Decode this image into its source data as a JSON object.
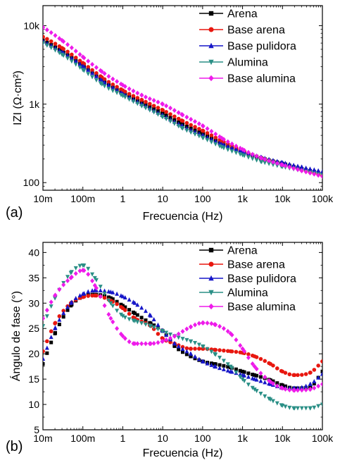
{
  "chart_data": [
    {
      "type": "scatter",
      "panel_label": "(a)",
      "xlabel": "Frecuencia (Hz)",
      "ylabel": "IZI (Ω·cm²)",
      "x_scale": "log",
      "y_scale": "log",
      "xlim": [
        0.01,
        100000
      ],
      "ylim": [
        80,
        18000
      ],
      "x_ticks": [
        {
          "value": 0.01,
          "label": "10m"
        },
        {
          "value": 0.1,
          "label": "100m"
        },
        {
          "value": 1,
          "label": "1"
        },
        {
          "value": 10,
          "label": "10"
        },
        {
          "value": 100,
          "label": "100"
        },
        {
          "value": 1000,
          "label": "1k"
        },
        {
          "value": 10000,
          "label": "10k"
        },
        {
          "value": 100000,
          "label": "100k"
        }
      ],
      "y_ticks": [
        {
          "value": 100,
          "label": "100"
        },
        {
          "value": 1000,
          "label": "1k"
        },
        {
          "value": 10000,
          "label": "10k"
        }
      ],
      "legend_position": "top-right",
      "series": [
        {
          "name": "Arena",
          "color": "#000000",
          "marker": "square",
          "x": [
            0.01,
            0.03,
            0.1,
            0.3,
            1,
            3,
            10,
            30,
            100,
            300,
            1000,
            3000,
            10000,
            30000,
            100000
          ],
          "y": [
            6500,
            4700,
            3100,
            2050,
            1400,
            1050,
            760,
            560,
            420,
            320,
            250,
            205,
            175,
            150,
            130
          ]
        },
        {
          "name": "Base arena",
          "color": "#e8170f",
          "marker": "circle",
          "x": [
            0.01,
            0.03,
            0.1,
            0.3,
            1,
            3,
            10,
            30,
            100,
            300,
            1000,
            3000,
            10000,
            30000,
            100000
          ],
          "y": [
            7200,
            5200,
            3350,
            2200,
            1500,
            1130,
            840,
            620,
            460,
            340,
            255,
            205,
            170,
            145,
            122
          ]
        },
        {
          "name": "Base pulidora",
          "color": "#1616c8",
          "marker": "triangle-up",
          "x": [
            0.01,
            0.03,
            0.1,
            0.3,
            1,
            3,
            10,
            30,
            100,
            300,
            1000,
            3000,
            10000,
            30000,
            100000
          ],
          "y": [
            6300,
            4600,
            3050,
            2000,
            1360,
            1000,
            720,
            530,
            400,
            310,
            250,
            210,
            180,
            158,
            138
          ]
        },
        {
          "name": "Alumina",
          "color": "#2a8f86",
          "marker": "triangle-down",
          "x": [
            0.01,
            0.03,
            0.1,
            0.3,
            1,
            3,
            10,
            30,
            100,
            300,
            1000,
            3000,
            10000,
            30000,
            100000
          ],
          "y": [
            6000,
            4300,
            2750,
            1800,
            1280,
            950,
            690,
            500,
            375,
            285,
            225,
            185,
            160,
            142,
            125
          ]
        },
        {
          "name": "Base alumina",
          "color": "#ee1bea",
          "marker": "diamond",
          "x": [
            0.01,
            0.03,
            0.1,
            0.3,
            1,
            3,
            10,
            30,
            100,
            300,
            1000,
            3000,
            10000,
            30000,
            100000
          ],
          "y": [
            9500,
            6500,
            4000,
            2600,
            1750,
            1300,
            1000,
            740,
            530,
            370,
            265,
            205,
            168,
            142,
            120
          ]
        }
      ]
    },
    {
      "type": "scatter",
      "panel_label": "(b)",
      "xlabel": "Frecuencia (Hz)",
      "ylabel": "Ángulo de fase (°)",
      "x_scale": "log",
      "y_scale": "linear",
      "xlim": [
        0.01,
        100000
      ],
      "ylim": [
        5,
        42
      ],
      "x_ticks": [
        {
          "value": 0.01,
          "label": "10m"
        },
        {
          "value": 0.1,
          "label": "100m"
        },
        {
          "value": 1,
          "label": "1"
        },
        {
          "value": 10,
          "label": "10"
        },
        {
          "value": 100,
          "label": "100"
        },
        {
          "value": 1000,
          "label": "1k"
        },
        {
          "value": 10000,
          "label": "10k"
        },
        {
          "value": 100000,
          "label": "100k"
        }
      ],
      "y_ticks": [
        {
          "value": 5,
          "label": "5"
        },
        {
          "value": 10,
          "label": "10"
        },
        {
          "value": 15,
          "label": "15"
        },
        {
          "value": 20,
          "label": "20"
        },
        {
          "value": 25,
          "label": "25"
        },
        {
          "value": 30,
          "label": "30"
        },
        {
          "value": 35,
          "label": "35"
        },
        {
          "value": 40,
          "label": "40"
        }
      ],
      "legend_position": "top-right",
      "series": [
        {
          "name": "Arena",
          "color": "#000000",
          "marker": "square",
          "x": [
            0.01,
            0.02,
            0.05,
            0.1,
            0.2,
            0.5,
            1,
            2,
            5,
            10,
            20,
            50,
            100,
            200,
            500,
            1000,
            2000,
            5000,
            10000,
            20000,
            50000,
            100000
          ],
          "y": [
            18,
            24,
            29.5,
            31.3,
            31.7,
            31,
            29.5,
            28,
            26,
            24.5,
            21.5,
            19.5,
            18.5,
            18,
            17.3,
            16.5,
            15.8,
            14.8,
            13.8,
            13.2,
            13.5,
            16.5
          ]
        },
        {
          "name": "Base arena",
          "color": "#e8170f",
          "marker": "circle",
          "x": [
            0.01,
            0.02,
            0.05,
            0.1,
            0.2,
            0.5,
            1,
            2,
            5,
            10,
            20,
            50,
            100,
            200,
            500,
            1000,
            2000,
            5000,
            10000,
            20000,
            50000,
            100000
          ],
          "y": [
            20.5,
            26,
            30,
            31.2,
            31.5,
            30.5,
            29,
            27,
            25.5,
            23,
            22,
            21,
            21,
            20.8,
            20.5,
            20.2,
            19.5,
            18,
            16.5,
            15.8,
            16.3,
            18.5
          ]
        },
        {
          "name": "Base pulidora",
          "color": "#1616c8",
          "marker": "triangle-up",
          "x": [
            0.01,
            0.02,
            0.05,
            0.1,
            0.2,
            0.5,
            1,
            2,
            5,
            10,
            20,
            50,
            100,
            200,
            500,
            1000,
            2000,
            5000,
            10000,
            20000,
            50000,
            100000
          ],
          "y": [
            19,
            25,
            30,
            31.8,
            32.5,
            32.2,
            31.3,
            30,
            27.5,
            24.5,
            22,
            20,
            18.5,
            17.5,
            16.5,
            15.8,
            15,
            14,
            13.3,
            13.2,
            14,
            16
          ]
        },
        {
          "name": "Alumina",
          "color": "#2a8f86",
          "marker": "triangle-down",
          "x": [
            0.01,
            0.02,
            0.05,
            0.1,
            0.2,
            0.5,
            1,
            2,
            5,
            10,
            20,
            50,
            100,
            200,
            500,
            1000,
            2000,
            5000,
            10000,
            20000,
            50000,
            100000
          ],
          "y": [
            25.5,
            31,
            36,
            37.5,
            35,
            30,
            27.5,
            26.5,
            25.5,
            24.5,
            23.5,
            22.5,
            21.5,
            20,
            17.5,
            15,
            13,
            11,
            9.8,
            9.3,
            9.3,
            10
          ]
        },
        {
          "name": "Base alumina",
          "color": "#ee1bea",
          "marker": "diamond",
          "x": [
            0.01,
            0.02,
            0.05,
            0.1,
            0.2,
            0.5,
            1,
            2,
            5,
            10,
            20,
            50,
            100,
            200,
            500,
            1000,
            2000,
            5000,
            10000,
            20000,
            50000,
            100000
          ],
          "y": [
            27,
            31.5,
            35,
            36.5,
            33.5,
            27,
            23.5,
            22,
            22,
            22.5,
            23.5,
            25.3,
            26.1,
            25.8,
            24,
            21,
            17.5,
            14.5,
            13.2,
            12.8,
            13,
            14
          ]
        }
      ]
    }
  ]
}
